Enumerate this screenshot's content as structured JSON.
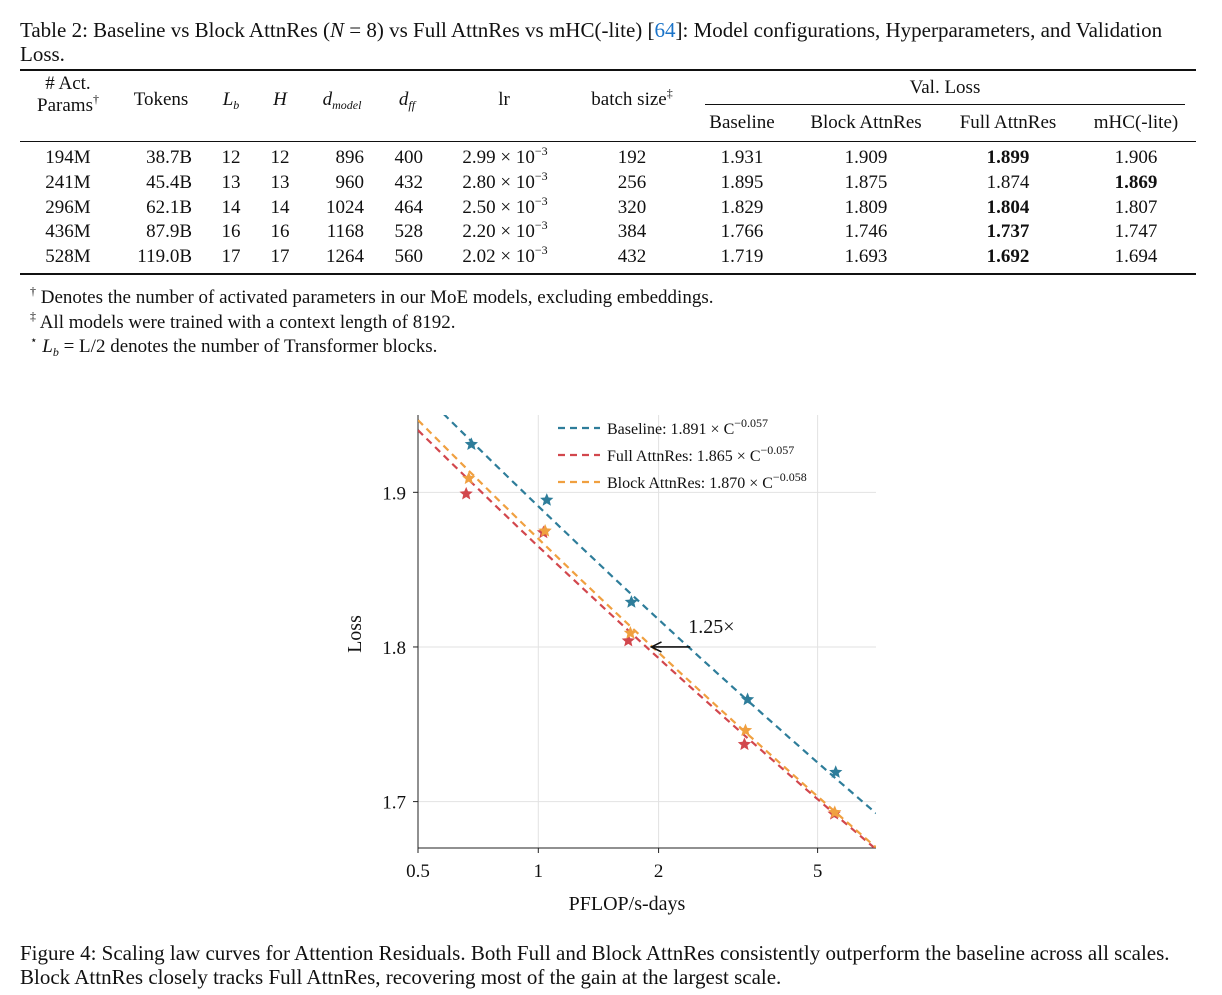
{
  "table": {
    "caption_prefix": "Table 2: Baseline vs Block AttnRes (",
    "caption_math": "N",
    "caption_eq": " = 8) vs Full AttnRes vs mHC(-lite) [",
    "caption_cite": "64",
    "caption_suffix": "]: Model configurations, Hyperparameters, and Validation Loss.",
    "headers": {
      "act_params_1": "# Act.",
      "act_params_2": "Params",
      "dagger": "†",
      "tokens": "Tokens",
      "lb": "L",
      "lb_sub": "b",
      "h": "H",
      "dmodel": "d",
      "dmodel_sub": "model",
      "dff": "d",
      "dff_sub": "ff",
      "lr": "lr",
      "batch": "batch size",
      "ddagger": "‡",
      "val_loss": "Val. Loss",
      "baseline": "Baseline",
      "block": "Block AttnRes",
      "full": "Full AttnRes",
      "mhc": "mHC(-lite)"
    },
    "rows": [
      {
        "params": "194M",
        "tokens": "38.7B",
        "lb": "12",
        "h": "12",
        "dmodel": "896",
        "dff": "400",
        "lr": "2.99 × 10",
        "lr_exp": "−3",
        "batch": "192",
        "baseline": "1.931",
        "block": "1.909",
        "full": "1.899",
        "mhc": "1.906"
      },
      {
        "params": "241M",
        "tokens": "45.4B",
        "lb": "13",
        "h": "13",
        "dmodel": "960",
        "dff": "432",
        "lr": "2.80 × 10",
        "lr_exp": "−3",
        "batch": "256",
        "baseline": "1.895",
        "block": "1.875",
        "full": "1.874",
        "mhc": "1.869"
      },
      {
        "params": "296M",
        "tokens": "62.1B",
        "lb": "14",
        "h": "14",
        "dmodel": "1024",
        "dff": "464",
        "lr": "2.50 × 10",
        "lr_exp": "−3",
        "batch": "320",
        "baseline": "1.829",
        "block": "1.809",
        "full": "1.804",
        "mhc": "1.807"
      },
      {
        "params": "436M",
        "tokens": "87.9B",
        "lb": "16",
        "h": "16",
        "dmodel": "1168",
        "dff": "528",
        "lr": "2.20 × 10",
        "lr_exp": "−3",
        "batch": "384",
        "baseline": "1.766",
        "block": "1.746",
        "full": "1.737",
        "mhc": "1.747"
      },
      {
        "params": "528M",
        "tokens": "119.0B",
        "lb": "17",
        "h": "17",
        "dmodel": "1264",
        "dff": "560",
        "lr": "2.02 × 10",
        "lr_exp": "−3",
        "batch": "432",
        "baseline": "1.719",
        "block": "1.693",
        "full": "1.692",
        "mhc": "1.694"
      }
    ],
    "bold_cells": [
      {
        "row": 0,
        "col": "full"
      },
      {
        "row": 1,
        "col": "mhc"
      },
      {
        "row": 2,
        "col": "full"
      },
      {
        "row": 3,
        "col": "full"
      },
      {
        "row": 4,
        "col": "full"
      }
    ],
    "notes": [
      {
        "mark": "†",
        "text": "Denotes the number of activated parameters in our MoE models, excluding embeddings."
      },
      {
        "mark": "‡",
        "text": "All models were trained with a context length of 8192."
      },
      {
        "mark": "⋆",
        "text": " = L/2 denotes the number of Transformer blocks.",
        "math_lead": "L",
        "math_sub": "b"
      }
    ]
  },
  "figure": {
    "caption": "Figure 4: Scaling law curves for Attention Residuals. Both Full and Block AttnRes consistently outperform the baseline across all scales. Block AttnRes closely tracks Full AttnRes, recovering most of the gain at the largest scale."
  },
  "chart_data": {
    "type": "line",
    "xlabel": "PFLOP/s-days",
    "ylabel": "Loss",
    "xscale": "log",
    "xlim": [
      0.5,
      7.0
    ],
    "ylim": [
      1.67,
      1.95
    ],
    "xticks": [
      {
        "value": 0.5,
        "label": "0.5"
      },
      {
        "value": 1,
        "label": "1"
      },
      {
        "value": 2,
        "label": "2"
      },
      {
        "value": 5,
        "label": "5"
      }
    ],
    "yticks": [
      {
        "value": 1.7,
        "label": "1.7"
      },
      {
        "value": 1.8,
        "label": "1.8"
      },
      {
        "value": 1.9,
        "label": "1.9"
      }
    ],
    "grid": true,
    "legend_position": "top-right",
    "annotation": {
      "text": "1.25×",
      "arrow_from_x": 2.4,
      "arrow_to_x": 1.92,
      "y": 1.8
    },
    "fits": [
      {
        "name": "Baseline",
        "label_text": "Baseline: 1.891 × C",
        "exponent_text": "−0.057",
        "a": 1.891,
        "b": -0.057,
        "color": "#2e7d9a"
      },
      {
        "name": "Full AttnRes",
        "label_text": "Full AttnRes: 1.865 × C",
        "exponent_text": "−0.057",
        "a": 1.865,
        "b": -0.057,
        "color": "#d2474d"
      },
      {
        "name": "Block AttnRes",
        "label_text": "Block AttnRes: 1.870 × C",
        "exponent_text": "−0.058",
        "a": 1.87,
        "b": -0.058,
        "color": "#f0a040"
      }
    ],
    "series": [
      {
        "name": "Baseline",
        "color": "#2e7d9a",
        "x": [
          0.68,
          1.05,
          1.71,
          3.34,
          5.55
        ],
        "y": [
          1.931,
          1.895,
          1.829,
          1.766,
          1.719
        ]
      },
      {
        "name": "Full AttnRes",
        "color": "#d2474d",
        "x": [
          0.66,
          1.03,
          1.68,
          3.28,
          5.5
        ],
        "y": [
          1.899,
          1.874,
          1.804,
          1.737,
          1.692
        ]
      },
      {
        "name": "Block AttnRes",
        "color": "#f0a040",
        "x": [
          0.67,
          1.04,
          1.7,
          3.3,
          5.52
        ],
        "y": [
          1.909,
          1.875,
          1.809,
          1.746,
          1.693
        ]
      }
    ]
  }
}
